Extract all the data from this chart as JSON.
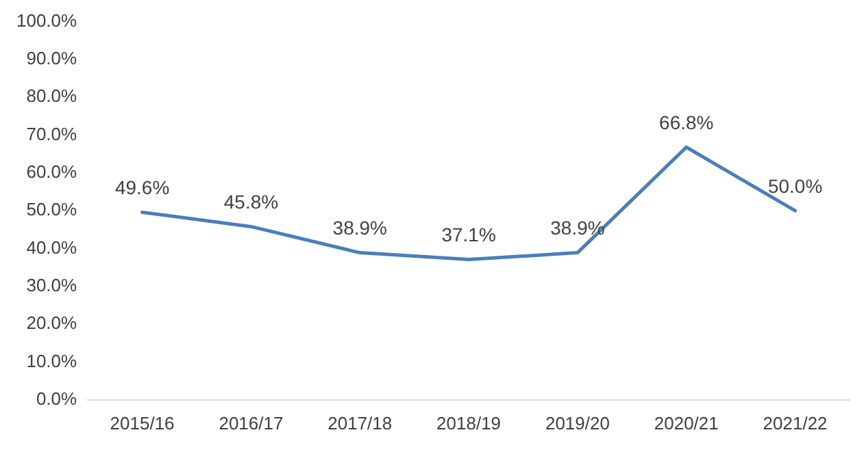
{
  "chart_data": {
    "type": "line",
    "categories": [
      "2015/16",
      "2016/17",
      "2017/18",
      "2018/19",
      "2019/20",
      "2020/21",
      "2021/22"
    ],
    "series": [
      {
        "color": "#4a7ebb",
        "values": [
          49.6,
          45.8,
          38.9,
          37.1,
          38.9,
          66.8,
          50.0
        ],
        "value_labels": [
          "49.6%",
          "45.8%",
          "38.9%",
          "37.1%",
          "38.9%",
          "66.8%",
          "50.0%"
        ]
      }
    ],
    "ylim": [
      0,
      100
    ],
    "yticks": [
      {
        "value": 0,
        "label": "0.0%"
      },
      {
        "value": 10,
        "label": "10.0%"
      },
      {
        "value": 20,
        "label": "20.0%"
      },
      {
        "value": 30,
        "label": "30.0%"
      },
      {
        "value": 40,
        "label": "40.0%"
      },
      {
        "value": 50,
        "label": "50.0%"
      },
      {
        "value": 60,
        "label": "60.0%"
      },
      {
        "value": 70,
        "label": "70.0%"
      },
      {
        "value": 80,
        "label": "80.0%"
      },
      {
        "value": 90,
        "label": "90.0%"
      },
      {
        "value": 100,
        "label": "100.0%"
      }
    ],
    "grid": false,
    "legend": false,
    "marker": "none",
    "line_style": "solid"
  }
}
